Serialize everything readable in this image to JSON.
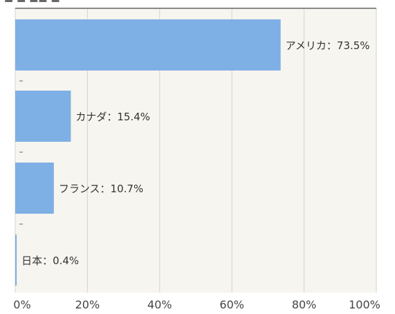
{
  "chart_data": {
    "type": "bar",
    "orientation": "horizontal",
    "categories": [
      "アメリカ",
      "カナダ",
      "フランス",
      "日本"
    ],
    "values": [
      73.5,
      15.4,
      10.7,
      0.4
    ],
    "value_labels": [
      "アメリカ：73.5%",
      "カナダ：15.4%",
      "フランス：10.7%",
      "日本：0.4%"
    ],
    "xlim": [
      0,
      100
    ],
    "x_ticks": [
      "0%",
      "20%",
      "40%",
      "60%",
      "80%",
      "100%"
    ],
    "title": "",
    "xlabel": "",
    "ylabel": "",
    "grid": "vertical",
    "legend": "none"
  },
  "colors": {
    "bar": "#7fb0e5",
    "plot_background": "#f7f5ef",
    "grid": "#d6d3cb",
    "axis": "#888888"
  }
}
